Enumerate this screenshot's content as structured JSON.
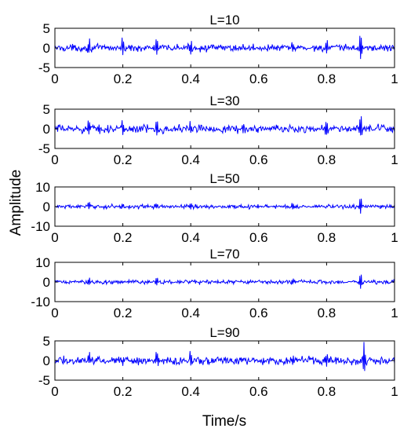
{
  "figure": {
    "ylabel": "Amplitude",
    "xlabel": "Time/s"
  },
  "chart_data": [
    {
      "type": "line",
      "title": "L=10",
      "xlim": [
        0,
        1
      ],
      "ylim": [
        -5,
        5
      ],
      "xticks": [
        "0",
        "0.2",
        "0.4",
        "0.6",
        "0.8",
        "1"
      ],
      "yticks": [
        "5",
        "0",
        "-5"
      ],
      "color": "#0000ff",
      "noise_amplitude": 0.6,
      "spikes": [
        [
          0.1,
          2.5
        ],
        [
          0.2,
          2.2
        ],
        [
          0.3,
          2.8
        ],
        [
          0.4,
          2.2
        ],
        [
          0.7,
          2.0
        ],
        [
          0.8,
          2.4
        ],
        [
          0.9,
          3.8
        ]
      ]
    },
    {
      "type": "line",
      "title": "L=30",
      "xlim": [
        0,
        1
      ],
      "ylim": [
        -5,
        5
      ],
      "xticks": [
        "0",
        "0.2",
        "0.4",
        "0.6",
        "0.8",
        "1"
      ],
      "yticks": [
        "5",
        "0",
        "-5"
      ],
      "color": "#0000ff",
      "noise_amplitude": 0.7,
      "spikes": [
        [
          0.1,
          2.8
        ],
        [
          0.2,
          2.2
        ],
        [
          0.3,
          3.2
        ],
        [
          0.4,
          2.0
        ],
        [
          0.8,
          2.0
        ],
        [
          0.9,
          4.2
        ]
      ]
    },
    {
      "type": "line",
      "title": "L=50",
      "xlim": [
        0,
        1
      ],
      "ylim": [
        -10,
        10
      ],
      "xticks": [
        "0",
        "0.2",
        "0.4",
        "0.6",
        "0.8",
        "1"
      ],
      "yticks": [
        "10",
        "0",
        "-10"
      ],
      "color": "#0000ff",
      "noise_amplitude": 0.7,
      "spikes": [
        [
          0.1,
          2.4
        ],
        [
          0.2,
          2.0
        ],
        [
          0.3,
          2.4
        ],
        [
          0.4,
          2.0
        ],
        [
          0.7,
          1.8
        ],
        [
          0.9,
          5.0
        ]
      ]
    },
    {
      "type": "line",
      "title": "L=70",
      "xlim": [
        0,
        1
      ],
      "ylim": [
        -10,
        10
      ],
      "xticks": [
        "0",
        "0.2",
        "0.4",
        "0.6",
        "0.8",
        "1"
      ],
      "yticks": [
        "10",
        "0",
        "-10"
      ],
      "color": "#0000ff",
      "noise_amplitude": 0.7,
      "spikes": [
        [
          0.1,
          2.4
        ],
        [
          0.3,
          2.6
        ],
        [
          0.7,
          1.8
        ],
        [
          0.9,
          5.5
        ]
      ]
    },
    {
      "type": "line",
      "title": "L=90",
      "xlim": [
        0,
        1
      ],
      "ylim": [
        -5,
        5
      ],
      "xticks": [
        "0",
        "0.2",
        "0.4",
        "0.6",
        "0.8",
        "1"
      ],
      "yticks": [
        "5",
        "0",
        "-5"
      ],
      "color": "#0000ff",
      "noise_amplitude": 0.7,
      "spikes": [
        [
          0.1,
          2.5
        ],
        [
          0.2,
          2.0
        ],
        [
          0.3,
          2.5
        ],
        [
          0.4,
          2.0
        ],
        [
          0.7,
          2.0
        ],
        [
          0.8,
          2.0
        ],
        [
          0.91,
          4.5
        ]
      ]
    }
  ]
}
